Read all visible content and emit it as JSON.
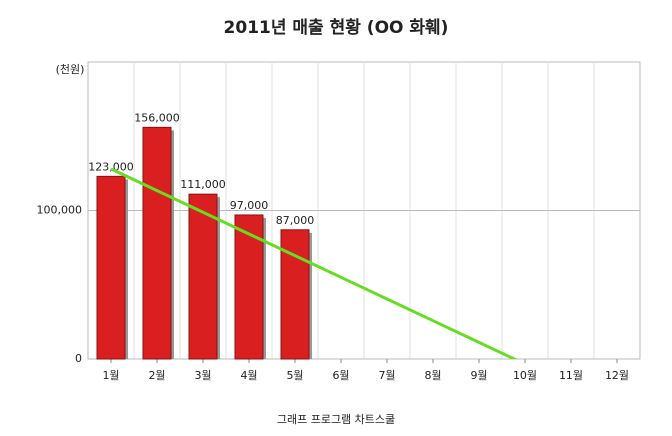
{
  "chart_data": {
    "type": "bar",
    "title": "2011년 매출 현황 (OO 화훼)",
    "y_unit_label": "(천원)",
    "x_label": "그래프 프로그램 차트스쿨",
    "categories": [
      "1월",
      "2월",
      "3월",
      "4월",
      "5월",
      "6월",
      "7월",
      "8월",
      "9월",
      "10월",
      "11월",
      "12월"
    ],
    "series": [
      {
        "name": "매출",
        "type": "bar",
        "color": "#d91f1f",
        "values": [
          123000,
          156000,
          111000,
          97000,
          87000,
          null,
          null,
          null,
          null,
          null,
          null,
          null
        ],
        "value_labels": [
          "123,000",
          "156,000",
          "111,000",
          "97,000",
          "87,000",
          null,
          null,
          null,
          null,
          null,
          null,
          null
        ]
      },
      {
        "name": "추세선",
        "type": "line",
        "color": "#66dd22",
        "values": [
          128000,
          113400,
          98800,
          84200,
          69600,
          55000,
          40400,
          25800,
          11200,
          -3400,
          null,
          null
        ]
      }
    ],
    "ylim": [
      0,
      200000
    ],
    "yticks": [
      0,
      {
        "value": 100000,
        "label": "100,000"
      }
    ],
    "grid": true
  }
}
